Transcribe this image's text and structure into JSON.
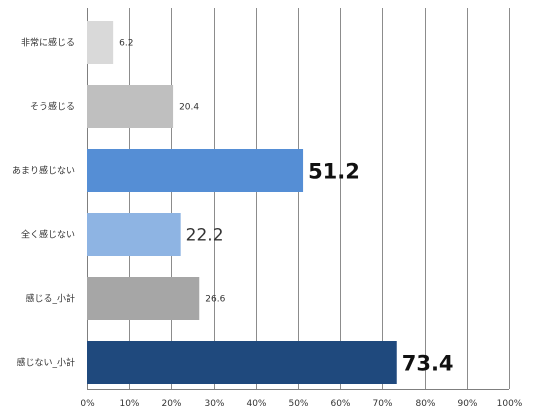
{
  "chart_data": {
    "type": "bar",
    "orientation": "horizontal",
    "categories": [
      "非常に感じる",
      "そう感じる",
      "あまり感じない",
      "全く感じない",
      "感じる_小計",
      "感じない_小計"
    ],
    "values": [
      6.2,
      20.4,
      51.2,
      22.2,
      26.6,
      73.4
    ],
    "data_labels": [
      "6.2",
      "20.4",
      "51.2",
      "22.2",
      "26.6",
      "73.4"
    ],
    "label_emphasis": [
      "small",
      "small",
      "large",
      "medium",
      "small",
      "large"
    ],
    "bar_colors": [
      "#d9d9d9",
      "#bfbfbf",
      "#558ed5",
      "#8eb4e3",
      "#a6a6a6",
      "#1f497d"
    ],
    "xlim": [
      0,
      100
    ],
    "x_ticks": [
      "0%",
      "10%",
      "20%",
      "30%",
      "40%",
      "50%",
      "60%",
      "70%",
      "80%",
      "90%",
      "100%"
    ],
    "grid": true,
    "legend": "none",
    "title": "",
    "xlabel": "",
    "ylabel": ""
  }
}
